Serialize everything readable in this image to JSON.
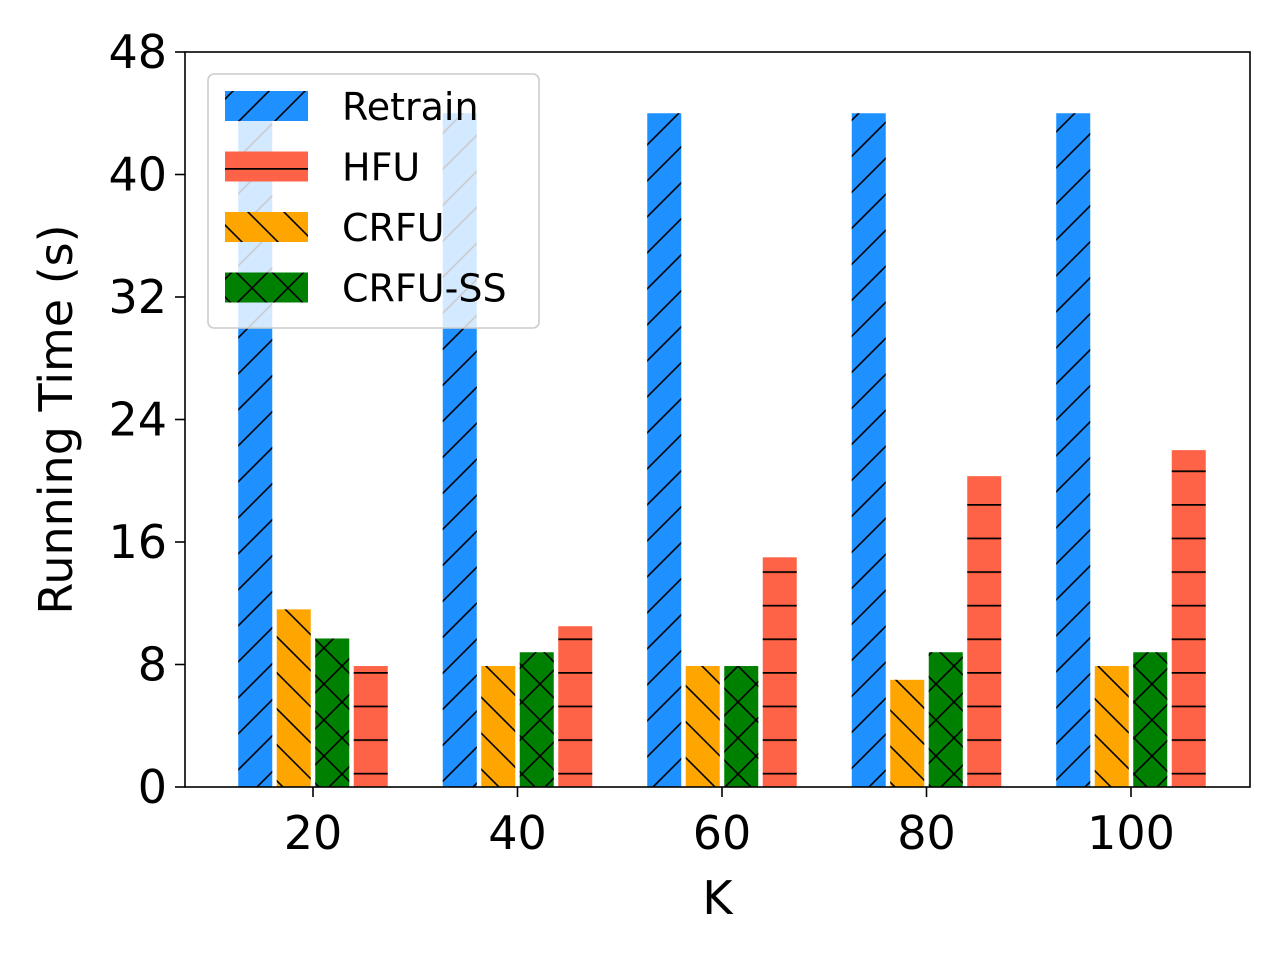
{
  "chart_data": {
    "type": "bar",
    "categories": [
      "20",
      "40",
      "60",
      "80",
      "100"
    ],
    "xlabel": "K",
    "ylabel": "Running Time (s)",
    "ylim": [
      0,
      48
    ],
    "yticks": [
      "0",
      "8",
      "16",
      "24",
      "32",
      "40",
      "48"
    ],
    "grid": false,
    "legend_position": "top-left",
    "series": [
      {
        "name": "Retrain",
        "color": "#1E90FF",
        "hatch": "/",
        "values": [
          44,
          44,
          44,
          44,
          44
        ]
      },
      {
        "name": "CRFU",
        "color": "#FFA500",
        "hatch": "\\",
        "values": [
          11.6,
          7.9,
          7.9,
          7.0,
          7.9
        ]
      },
      {
        "name": "CRFU-SS",
        "color": "#008000",
        "hatch": "x",
        "values": [
          9.7,
          8.8,
          7.9,
          8.8,
          8.8
        ]
      },
      {
        "name": "HFU",
        "color": "#FF6347",
        "hatch": "-",
        "values": [
          7.9,
          10.5,
          15.0,
          20.3,
          22.0
        ]
      }
    ],
    "legend_order": [
      "Retrain",
      "HFU",
      "CRFU",
      "CRFU-SS"
    ]
  }
}
